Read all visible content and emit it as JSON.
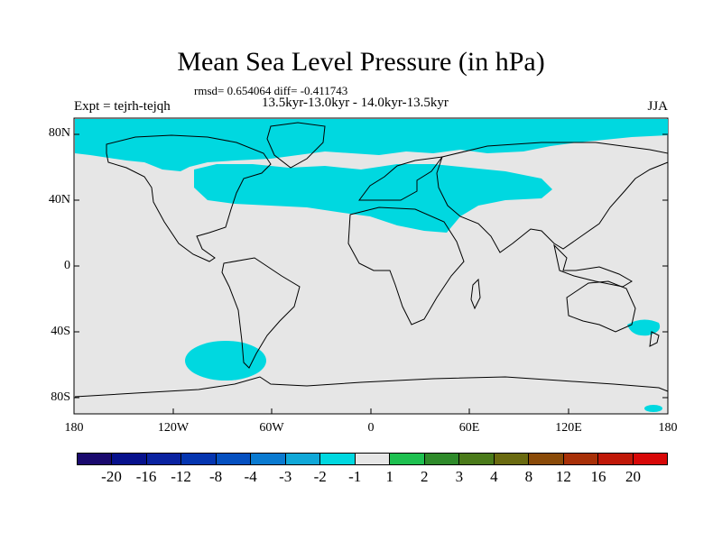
{
  "title": "Mean Sea Level Pressure (in hPa)",
  "stats": "rmsd= 0.654064 diff= -0.411743",
  "period": "13.5kyr-13.0kyr - 14.0kyr-13.5kyr",
  "experiment": "Expt = tejrh-tejqh",
  "season": "JJA",
  "lat_labels": [
    "80N",
    "40N",
    "0",
    "40S",
    "80S"
  ],
  "lon_labels": [
    "180",
    "120W",
    "60W",
    "0",
    "60E",
    "120E",
    "180"
  ],
  "colors": {
    "ocean_land_neutral": "#e6e6e6",
    "negative_minus1": "#00d8e0",
    "coastline": "#000000"
  },
  "colorbar": {
    "labels": [
      "-20",
      "-16",
      "-12",
      "-8",
      "-4",
      "-3",
      "-2",
      "-1",
      "1",
      "2",
      "3",
      "4",
      "8",
      "12",
      "16",
      "20"
    ],
    "colors": [
      "#1a0a6e",
      "#07118c",
      "#0a22a0",
      "#0535b0",
      "#0550c0",
      "#0a7ad0",
      "#10a8d8",
      "#00d8e0",
      "#e6e6e6",
      "#1ec050",
      "#2e8a2a",
      "#4a7a1a",
      "#6a6a10",
      "#8a4a08",
      "#a83008",
      "#c01808",
      "#d80808"
    ]
  }
}
